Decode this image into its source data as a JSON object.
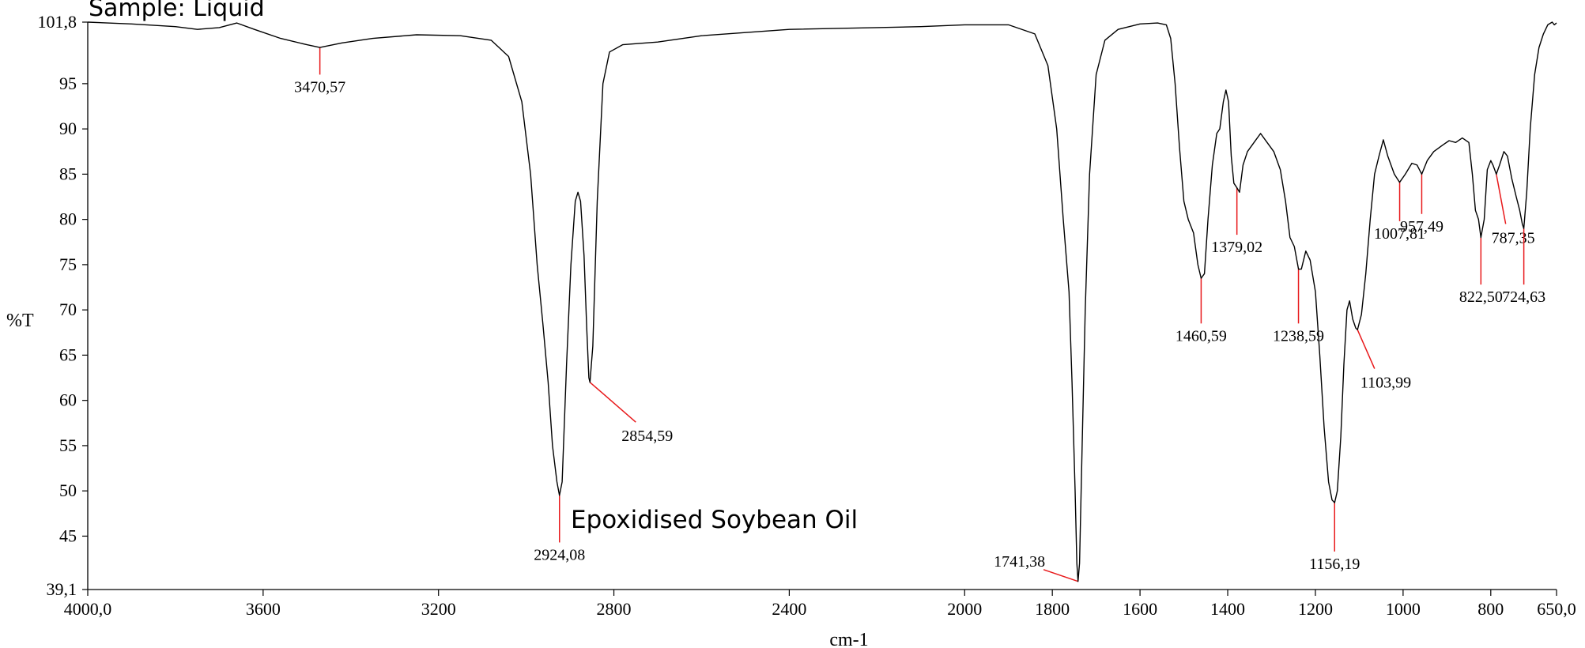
{
  "chart_data": {
    "type": "line",
    "sample_label": "Sample: Liquid",
    "annotation": "Epoxidised Soybean Oil",
    "xlabel": "cm-1",
    "ylabel": "%T",
    "xlim": [
      4000,
      650
    ],
    "ylim": [
      39.1,
      101.8
    ],
    "x_ticks": [
      {
        "value": 4000,
        "label": "4000,0"
      },
      {
        "value": 3600,
        "label": "3600"
      },
      {
        "value": 3200,
        "label": "3200"
      },
      {
        "value": 2800,
        "label": "2800"
      },
      {
        "value": 2400,
        "label": "2400"
      },
      {
        "value": 2000,
        "label": "2000"
      },
      {
        "value": 1800,
        "label": "1800"
      },
      {
        "value": 1600,
        "label": "1600"
      },
      {
        "value": 1400,
        "label": "1400"
      },
      {
        "value": 1200,
        "label": "1200"
      },
      {
        "value": 1000,
        "label": "1000"
      },
      {
        "value": 800,
        "label": "800"
      },
      {
        "value": 650,
        "label": "650,0"
      }
    ],
    "y_ticks": [
      {
        "value": 101.8,
        "label": "101,8"
      },
      {
        "value": 95,
        "label": "95"
      },
      {
        "value": 90,
        "label": "90"
      },
      {
        "value": 85,
        "label": "85"
      },
      {
        "value": 80,
        "label": "80"
      },
      {
        "value": 75,
        "label": "75"
      },
      {
        "value": 70,
        "label": "70"
      },
      {
        "value": 65,
        "label": "65"
      },
      {
        "value": 60,
        "label": "60"
      },
      {
        "value": 55,
        "label": "55"
      },
      {
        "value": 50,
        "label": "50"
      },
      {
        "value": 45,
        "label": "45"
      },
      {
        "value": 39.1,
        "label": "39,1"
      }
    ],
    "series": [
      {
        "color": "#000000",
        "points": [
          [
            4000,
            101.8
          ],
          [
            3900,
            101.6
          ],
          [
            3800,
            101.3
          ],
          [
            3750,
            101.0
          ],
          [
            3700,
            101.2
          ],
          [
            3660,
            101.7
          ],
          [
            3620,
            101.0
          ],
          [
            3560,
            100.0
          ],
          [
            3500,
            99.3
          ],
          [
            3470.57,
            99.0
          ],
          [
            3420,
            99.5
          ],
          [
            3350,
            100.0
          ],
          [
            3250,
            100.4
          ],
          [
            3150,
            100.3
          ],
          [
            3080,
            99.8
          ],
          [
            3040,
            98.0
          ],
          [
            3010,
            93.0
          ],
          [
            2990,
            85.0
          ],
          [
            2975,
            75.0
          ],
          [
            2962,
            68.5
          ],
          [
            2950,
            62.0
          ],
          [
            2940,
            55.0
          ],
          [
            2930,
            51.0
          ],
          [
            2924.08,
            49.5
          ],
          [
            2918,
            51.0
          ],
          [
            2908,
            64.0
          ],
          [
            2898,
            75.0
          ],
          [
            2888,
            82.0
          ],
          [
            2882,
            83.0
          ],
          [
            2876,
            82.0
          ],
          [
            2868,
            76.0
          ],
          [
            2862,
            68.0
          ],
          [
            2857,
            62.5
          ],
          [
            2854.59,
            62.0
          ],
          [
            2848,
            66.0
          ],
          [
            2838,
            82.0
          ],
          [
            2825,
            95.0
          ],
          [
            2810,
            98.5
          ],
          [
            2780,
            99.3
          ],
          [
            2700,
            99.6
          ],
          [
            2600,
            100.3
          ],
          [
            2400,
            101.0
          ],
          [
            2200,
            101.2
          ],
          [
            2100,
            101.3
          ],
          [
            2000,
            101.5
          ],
          [
            1900,
            101.5
          ],
          [
            1840,
            100.5
          ],
          [
            1810,
            97.0
          ],
          [
            1790,
            90.0
          ],
          [
            1775,
            80.0
          ],
          [
            1762,
            72.0
          ],
          [
            1755,
            62.0
          ],
          [
            1748,
            50.0
          ],
          [
            1744,
            42.0
          ],
          [
            1741.38,
            40.0
          ],
          [
            1738,
            42.0
          ],
          [
            1732,
            55.0
          ],
          [
            1725,
            70.0
          ],
          [
            1715,
            85.0
          ],
          [
            1700,
            96.0
          ],
          [
            1680,
            99.8
          ],
          [
            1650,
            101.0
          ],
          [
            1600,
            101.6
          ],
          [
            1560,
            101.7
          ],
          [
            1540,
            101.5
          ],
          [
            1530,
            100.0
          ],
          [
            1520,
            95.0
          ],
          [
            1510,
            88.0
          ],
          [
            1500,
            82.0
          ],
          [
            1490,
            80.0
          ],
          [
            1478,
            78.5
          ],
          [
            1468,
            75.0
          ],
          [
            1460.59,
            73.5
          ],
          [
            1453,
            74.0
          ],
          [
            1445,
            80.0
          ],
          [
            1435,
            86.0
          ],
          [
            1425,
            89.5
          ],
          [
            1418,
            90.0
          ],
          [
            1410,
            93.0
          ],
          [
            1404,
            94.3
          ],
          [
            1398,
            93.0
          ],
          [
            1392,
            87.0
          ],
          [
            1386,
            84.0
          ],
          [
            1379.02,
            83.5
          ],
          [
            1373,
            83.0
          ],
          [
            1365,
            86.0
          ],
          [
            1355,
            87.5
          ],
          [
            1340,
            88.5
          ],
          [
            1325,
            89.5
          ],
          [
            1310,
            88.5
          ],
          [
            1295,
            87.5
          ],
          [
            1280,
            85.5
          ],
          [
            1268,
            82.0
          ],
          [
            1258,
            78.0
          ],
          [
            1248,
            77.0
          ],
          [
            1238.59,
            74.5
          ],
          [
            1232,
            74.5
          ],
          [
            1222,
            76.5
          ],
          [
            1212,
            75.5
          ],
          [
            1200,
            72.0
          ],
          [
            1190,
            65.0
          ],
          [
            1180,
            57.0
          ],
          [
            1170,
            51.0
          ],
          [
            1162,
            49.0
          ],
          [
            1156.19,
            48.7
          ],
          [
            1150,
            50.0
          ],
          [
            1142,
            56.0
          ],
          [
            1135,
            64.0
          ],
          [
            1128,
            70.0
          ],
          [
            1122,
            71.0
          ],
          [
            1115,
            69.0
          ],
          [
            1108,
            68.0
          ],
          [
            1103.99,
            67.8
          ],
          [
            1095,
            69.5
          ],
          [
            1085,
            74.0
          ],
          [
            1075,
            80.0
          ],
          [
            1065,
            85.0
          ],
          [
            1055,
            87.0
          ],
          [
            1045,
            88.8
          ],
          [
            1035,
            87.0
          ],
          [
            1020,
            85.0
          ],
          [
            1007.81,
            84.1
          ],
          [
            995,
            85.0
          ],
          [
            980,
            86.2
          ],
          [
            968,
            86.0
          ],
          [
            957.49,
            85.0
          ],
          [
            945,
            86.5
          ],
          [
            930,
            87.5
          ],
          [
            910,
            88.2
          ],
          [
            895,
            88.7
          ],
          [
            880,
            88.5
          ],
          [
            865,
            89.0
          ],
          [
            850,
            88.5
          ],
          [
            842,
            85.0
          ],
          [
            835,
            81.0
          ],
          [
            828,
            80.0
          ],
          [
            822.5,
            78.0
          ],
          [
            815,
            80.0
          ],
          [
            808,
            85.5
          ],
          [
            800,
            86.5
          ],
          [
            795,
            86.0
          ],
          [
            787.35,
            85.0
          ],
          [
            780,
            86.0
          ],
          [
            770,
            87.5
          ],
          [
            762,
            87.0
          ],
          [
            752,
            84.5
          ],
          [
            742,
            82.5
          ],
          [
            734,
            81.0
          ],
          [
            728,
            79.5
          ],
          [
            724.63,
            79.0
          ],
          [
            718,
            83.0
          ],
          [
            710,
            90.0
          ],
          [
            700,
            96.0
          ],
          [
            690,
            99.0
          ],
          [
            680,
            100.5
          ],
          [
            670,
            101.5
          ],
          [
            660,
            101.8
          ],
          [
            655,
            101.5
          ],
          [
            650,
            101.7
          ]
        ]
      }
    ],
    "peaks": [
      {
        "x": 3470.57,
        "y": 99.0,
        "label": "3470,57",
        "label_at": [
          3470.57,
          96.0
        ]
      },
      {
        "x": 2924.08,
        "y": 49.5,
        "label": "2924,08",
        "label_at": [
          2924.08,
          44.3
        ]
      },
      {
        "x": 2854.59,
        "y": 62.0,
        "label": "2854,59",
        "label_at": [
          2750,
          57.6
        ]
      },
      {
        "x": 1741.38,
        "y": 40.0,
        "label": "1741,38",
        "label_at": [
          1820,
          41.3
        ]
      },
      {
        "x": 1460.59,
        "y": 73.5,
        "label": "1460,59",
        "label_at": [
          1460.59,
          68.5
        ]
      },
      {
        "x": 1379.02,
        "y": 83.5,
        "label": "1379,02",
        "label_at": [
          1379.02,
          78.3
        ]
      },
      {
        "x": 1238.59,
        "y": 74.5,
        "label": "1238,59",
        "label_at": [
          1238.59,
          68.5
        ]
      },
      {
        "x": 1156.19,
        "y": 48.7,
        "label": "1156,19",
        "label_at": [
          1156.19,
          43.3
        ]
      },
      {
        "x": 1103.99,
        "y": 67.8,
        "label": "1103,99",
        "label_at": [
          1065,
          63.5
        ]
      },
      {
        "x": 1007.81,
        "y": 84.1,
        "label": "1007,81",
        "label_at": [
          1007.81,
          79.8
        ]
      },
      {
        "x": 957.49,
        "y": 85.0,
        "label": "957,49",
        "label_at": [
          957.49,
          80.6
        ]
      },
      {
        "x": 822.5,
        "y": 78.0,
        "label": "822,50",
        "label_at": [
          822.5,
          72.8
        ]
      },
      {
        "x": 787.35,
        "y": 85.0,
        "label": "787,35",
        "label_at": [
          766,
          79.5
        ]
      },
      {
        "x": 724.63,
        "y": 79.0,
        "label": "724,63",
        "label_at": [
          724.63,
          72.8
        ]
      }
    ],
    "grid": false,
    "legend": "none"
  }
}
